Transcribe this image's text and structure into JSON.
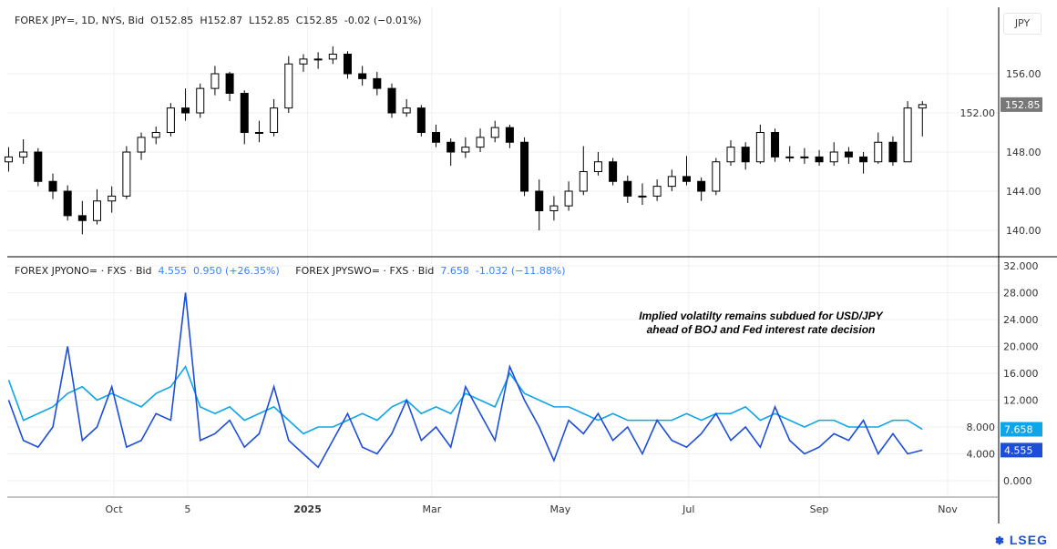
{
  "header": {
    "symbol": "FOREX JPY=, 1D, NYS, Bid",
    "open": "O152.85",
    "high": "H152.87",
    "low": "L152.85",
    "close": "C152.85",
    "change": "-0.02 (−0.01%)"
  },
  "lower_legend": {
    "series1_label": "FOREX JPYONO= · FXS · Bid",
    "series1_value": "4.555",
    "series1_change": "0.950 (+26.35%)",
    "series2_label": "FOREX JPYSWO= · FXS · Bid",
    "series2_value": "7.658",
    "series2_change": "-1.032 (−11.88%)"
  },
  "currency_button": "JPY",
  "annotation": "Implied volatilty remains subdued for USD/JPY ahead of BOJ and Fed interest rate decision",
  "logo": "LSEG",
  "colors": {
    "up": "#ffffff",
    "down": "#000000",
    "on": "#1d4ed8",
    "sw": "#0ea5e9",
    "last_price": "#787878"
  },
  "chart_data": [
    {
      "type": "candlestick",
      "interval": "weekly approximation of daily candles",
      "start_week": "2024-08-12",
      "ylim": [
        138,
        160
      ],
      "yticks": [
        "140.00",
        "144.00",
        "148.00",
        "152.00",
        "156.00"
      ],
      "last_value_label": "152.85",
      "ohlc": [
        [
          147.0,
          148.5,
          146.0,
          147.5
        ],
        [
          147.5,
          149.3,
          146.8,
          148.0
        ],
        [
          148.0,
          148.4,
          144.5,
          145.0
        ],
        [
          145.0,
          145.8,
          143.2,
          144.0
        ],
        [
          144.0,
          144.6,
          141.0,
          141.5
        ],
        [
          141.5,
          143.0,
          139.6,
          141.0
        ],
        [
          141.0,
          144.2,
          140.6,
          143.0
        ],
        [
          143.0,
          144.5,
          141.8,
          143.5
        ],
        [
          143.5,
          148.6,
          143.2,
          148.0
        ],
        [
          148.0,
          150.0,
          147.2,
          149.5
        ],
        [
          149.5,
          150.6,
          148.8,
          150.0
        ],
        [
          150.0,
          153.0,
          149.6,
          152.5
        ],
        [
          152.5,
          154.5,
          151.2,
          152.0
        ],
        [
          152.0,
          155.0,
          151.5,
          154.5
        ],
        [
          154.5,
          156.8,
          153.8,
          156.0
        ],
        [
          156.0,
          156.2,
          153.2,
          154.0
        ],
        [
          154.0,
          154.3,
          148.8,
          150.0
        ],
        [
          150.0,
          151.2,
          149.0,
          150.0
        ],
        [
          150.0,
          153.4,
          149.6,
          152.5
        ],
        [
          152.5,
          157.8,
          152.0,
          157.0
        ],
        [
          157.0,
          158.0,
          156.2,
          157.5
        ],
        [
          157.5,
          158.2,
          156.5,
          157.5
        ],
        [
          157.5,
          158.8,
          157.0,
          158.0
        ],
        [
          158.0,
          158.3,
          155.5,
          156.0
        ],
        [
          156.0,
          156.8,
          154.8,
          155.5
        ],
        [
          155.5,
          156.2,
          153.8,
          154.5
        ],
        [
          154.5,
          155.0,
          151.5,
          152.0
        ],
        [
          152.0,
          153.4,
          151.6,
          152.5
        ],
        [
          152.5,
          152.8,
          149.6,
          150.0
        ],
        [
          150.0,
          150.8,
          148.5,
          149.0
        ],
        [
          149.0,
          149.4,
          146.6,
          148.0
        ],
        [
          148.0,
          149.5,
          147.4,
          148.5
        ],
        [
          148.5,
          150.4,
          148.0,
          149.5
        ],
        [
          149.5,
          151.2,
          149.0,
          150.5
        ],
        [
          150.5,
          150.8,
          148.4,
          149.0
        ],
        [
          149.0,
          149.5,
          143.5,
          144.0
        ],
        [
          144.0,
          145.2,
          140.0,
          142.0
        ],
        [
          142.0,
          143.5,
          141.0,
          142.5
        ],
        [
          142.5,
          145.0,
          142.0,
          144.0
        ],
        [
          144.0,
          148.6,
          143.6,
          146.0
        ],
        [
          146.0,
          148.0,
          145.6,
          147.0
        ],
        [
          147.0,
          147.4,
          144.6,
          145.0
        ],
        [
          145.0,
          145.6,
          142.8,
          143.5
        ],
        [
          143.5,
          144.8,
          142.6,
          143.5
        ],
        [
          143.5,
          145.2,
          143.0,
          144.5
        ],
        [
          144.5,
          146.2,
          144.0,
          145.5
        ],
        [
          145.5,
          147.6,
          144.6,
          145.0
        ],
        [
          145.0,
          145.4,
          143.0,
          144.0
        ],
        [
          144.0,
          147.4,
          143.6,
          147.0
        ],
        [
          147.0,
          149.2,
          146.6,
          148.5
        ],
        [
          148.5,
          149.0,
          146.2,
          147.0
        ],
        [
          147.0,
          150.8,
          146.8,
          150.0
        ],
        [
          150.0,
          150.4,
          147.0,
          147.5
        ],
        [
          147.5,
          148.6,
          147.0,
          147.5
        ],
        [
          147.5,
          148.4,
          146.8,
          147.5
        ],
        [
          147.5,
          148.2,
          146.6,
          147.0
        ],
        [
          147.0,
          149.0,
          146.6,
          148.0
        ],
        [
          148.0,
          148.5,
          146.8,
          147.5
        ],
        [
          147.5,
          148.0,
          145.8,
          147.0
        ],
        [
          147.0,
          150.0,
          146.8,
          149.0
        ],
        [
          149.0,
          149.6,
          146.6,
          147.0
        ],
        [
          147.0,
          153.2,
          147.0,
          152.5
        ],
        [
          152.5,
          153.2,
          149.6,
          152.85
        ]
      ]
    },
    {
      "type": "line",
      "interval": "weekly approximation",
      "start_week": "2024-08-12",
      "ylim": [
        -1.5,
        34
      ],
      "yticks": [
        "0.000",
        "4.000",
        "8.000",
        "12.000",
        "16.000",
        "20.000",
        "24.000",
        "28.000",
        "32.000"
      ],
      "x_tick_labels": [
        {
          "date": "2024-10-01",
          "label": "Oct"
        },
        {
          "date": "2024-11-05",
          "label": "5"
        },
        {
          "date": "2025-01-01",
          "label": "2025"
        },
        {
          "date": "2025-03-01",
          "label": "Mar"
        },
        {
          "date": "2025-05-01",
          "label": "May"
        },
        {
          "date": "2025-07-01",
          "label": "Jul"
        },
        {
          "date": "2025-09-01",
          "label": "Sep"
        },
        {
          "date": "2025-11-01",
          "label": "Nov"
        }
      ],
      "series": [
        {
          "name": "FOREX JPYONO=",
          "color": "#1d4ed8",
          "last_label": "4.555",
          "values": [
            12,
            6,
            5,
            8,
            20,
            6,
            8,
            14,
            5,
            6,
            10,
            9,
            28,
            6,
            7,
            9,
            5,
            7,
            14,
            6,
            4,
            2,
            6,
            10,
            5,
            4,
            7,
            12,
            6,
            8,
            5,
            14,
            10,
            6,
            17,
            12,
            8,
            3,
            9,
            7,
            10,
            6,
            8,
            4,
            9,
            6,
            5,
            7,
            10,
            6,
            8,
            5,
            11,
            6,
            4,
            5,
            7,
            6,
            9,
            4,
            7,
            4,
            4.555
          ]
        },
        {
          "name": "FOREX JPYSWO=",
          "color": "#0ea5e9",
          "last_label": "7.658",
          "values": [
            15,
            9,
            10,
            11,
            13,
            14,
            12,
            13,
            12,
            11,
            13,
            14,
            17,
            11,
            10,
            11,
            9,
            10,
            11,
            9,
            7,
            8,
            8,
            9,
            10,
            9,
            11,
            12,
            10,
            11,
            10,
            13,
            12,
            11,
            16,
            13,
            12,
            11,
            11,
            10,
            9,
            10,
            9,
            9,
            9,
            9,
            10,
            9,
            10,
            10,
            11,
            9,
            10,
            9,
            8,
            9,
            9,
            8,
            8,
            8,
            9,
            9,
            7.658
          ]
        }
      ]
    }
  ]
}
